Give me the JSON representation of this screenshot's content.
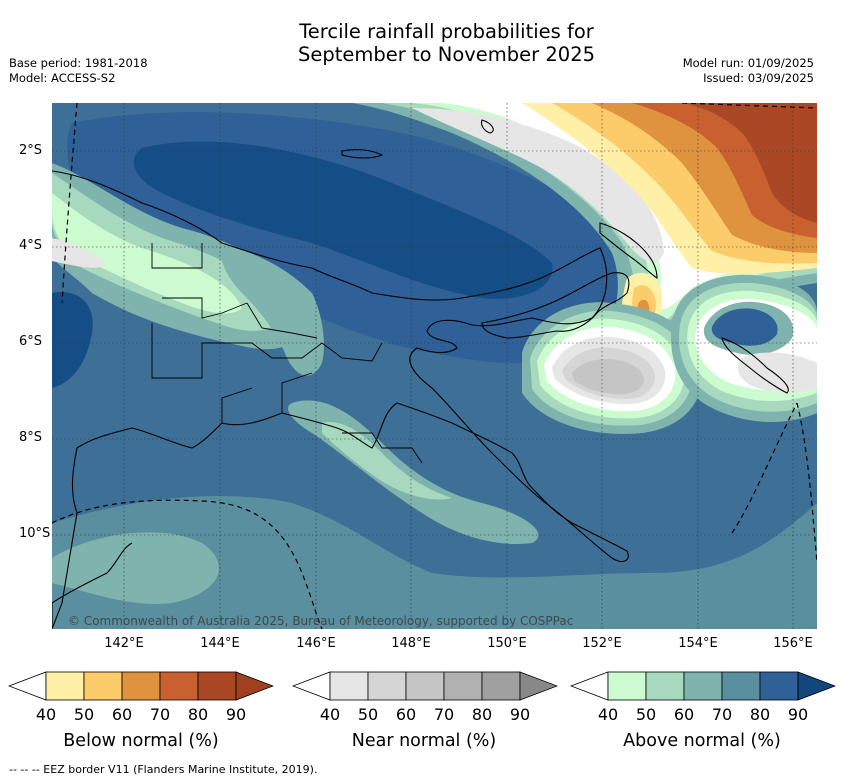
{
  "title_line1": "Tercile rainfall probabilities for",
  "title_line2": "September to November 2025",
  "base_period": "Base period: 1981-2018",
  "model": "Model: ACCESS-S2",
  "model_run": "Model run: 01/09/2025",
  "issued": "Issued: 03/09/2025",
  "lat_labels": [
    "2°S",
    "4°S",
    "6°S",
    "8°S",
    "10°S"
  ],
  "lon_labels": [
    "142°E",
    "144°E",
    "146°E",
    "148°E",
    "150°E",
    "152°E",
    "154°E",
    "156°E"
  ],
  "credit": "© Commonwealth of Australia 2025, Bureau of Meteorology, supported by COSPPac",
  "legends": {
    "below": {
      "label": "Below normal (%)",
      "ticks": [
        "40",
        "50",
        "60",
        "70",
        "80",
        "90"
      ],
      "colors": [
        "#ffffff",
        "#fff0a8",
        "#fdcc6a",
        "#e0933f",
        "#c86030",
        "#aa4825",
        "#a0401e"
      ]
    },
    "near": {
      "label": "Near normal (%)",
      "ticks": [
        "40",
        "50",
        "60",
        "70",
        "80",
        "90"
      ],
      "colors": [
        "#ffffff",
        "#e6e6e6",
        "#d5d5d5",
        "#c5c5c5",
        "#b1b1b1",
        "#a0a0a0",
        "#888888"
      ]
    },
    "above": {
      "label": "Above normal (%)",
      "ticks": [
        "40",
        "50",
        "60",
        "70",
        "80",
        "90"
      ],
      "colors": [
        "#ffffff",
        "#ccfbd0",
        "#a6d9be",
        "#7fb3ad",
        "#5a8fa0",
        "#2f6098",
        "#12467d"
      ]
    }
  },
  "footer": "-- -- -- EEZ border V11 (Flanders Marine Institute, 2019)."
}
